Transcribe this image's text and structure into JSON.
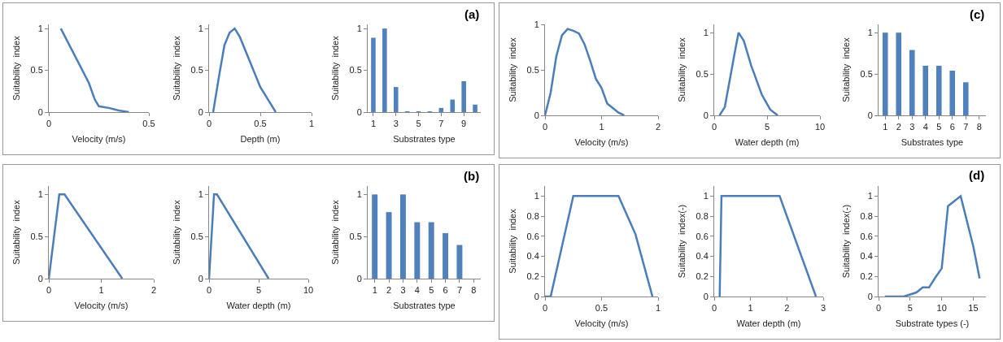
{
  "chart_data": [
    {
      "type": "line",
      "xlabel": "Velocity (m/s)",
      "ylabel": "Suitability  index",
      "x": [
        0.06,
        0.2,
        0.23,
        0.25,
        0.3,
        0.35,
        0.4
      ],
      "values": [
        1,
        0.35,
        0.15,
        0.07,
        0.05,
        0.02,
        0
      ],
      "color": "#4a7ebb",
      "xlim": [
        0,
        0.5
      ],
      "xticks": [
        0,
        0.5
      ],
      "ylim": [
        0,
        1.05
      ],
      "yticks": [
        0,
        0.5,
        1
      ]
    },
    {
      "type": "line",
      "xlabel": "Depth (m)",
      "ylabel": "Suitability  index",
      "x": [
        0.04,
        0.1,
        0.15,
        0.2,
        0.25,
        0.3,
        0.4,
        0.5,
        0.6,
        0.65
      ],
      "values": [
        0,
        0.45,
        0.8,
        0.95,
        1,
        0.9,
        0.6,
        0.3,
        0.1,
        0
      ],
      "color": "#4a7ebb",
      "xlim": [
        0,
        1
      ],
      "xticks": [
        0,
        0.5,
        1
      ],
      "ylim": [
        0,
        1.05
      ],
      "yticks": [
        0,
        0.5,
        1
      ]
    },
    {
      "type": "bar",
      "xlabel": "Substrates type",
      "ylabel": "Suitability  index",
      "x": [
        1,
        2,
        3,
        4,
        5,
        6,
        7,
        8,
        9,
        10
      ],
      "values": [
        0.89,
        1,
        0.3,
        0.01,
        0.01,
        0.01,
        0.05,
        0.15,
        0.37,
        0.09
      ],
      "color": "#4f81bd",
      "xlim": [
        0.5,
        10.5
      ],
      "xticks": [
        1,
        3,
        5,
        7,
        9
      ],
      "ylim": [
        0,
        1.05
      ],
      "yticks": [
        0,
        0.5,
        1
      ],
      "annotations": [
        "(a)"
      ]
    },
    {
      "type": "line",
      "xlabel": "Velocity (m/s)",
      "ylabel": "Suitability  index",
      "x": [
        0,
        0.1,
        0.2,
        0.3,
        0.4,
        0.5,
        0.6,
        0.7,
        0.8,
        0.9,
        1.0,
        1.1,
        1.2,
        1.3,
        1.4
      ],
      "values": [
        0,
        0.25,
        0.65,
        0.88,
        0.95,
        0.93,
        0.9,
        0.78,
        0.6,
        0.4,
        0.3,
        0.13,
        0.08,
        0.03,
        0
      ],
      "color": "#4a7ebb",
      "xlim": [
        0,
        2
      ],
      "xticks": [
        0,
        1,
        2
      ],
      "ylim": [
        0,
        1
      ],
      "yticks": [
        0,
        0.5,
        1
      ]
    },
    {
      "type": "line",
      "xlabel": "Water depth (m)",
      "ylabel": "Suitability  index",
      "x": [
        0.5,
        1,
        1.5,
        2,
        2.3,
        2.8,
        3.5,
        4.5,
        5.3,
        6
      ],
      "values": [
        0,
        0.1,
        0.45,
        0.8,
        1,
        0.9,
        0.6,
        0.25,
        0.07,
        0
      ],
      "color": "#4a7ebb",
      "xlim": [
        0,
        10
      ],
      "xticks": [
        0,
        5,
        10
      ],
      "ylim": [
        0,
        1.1
      ],
      "yticks": [
        0,
        0.5,
        1
      ]
    },
    {
      "type": "bar",
      "xlabel": "Substrates type",
      "ylabel": "Suitability  index",
      "x": [
        1,
        2,
        3,
        4,
        5,
        6,
        7
      ],
      "values": [
        1,
        1,
        0.79,
        0.6,
        0.6,
        0.54,
        0.4
      ],
      "color": "#4f81bd",
      "xlim": [
        0.5,
        8.5
      ],
      "xticks": [
        1,
        2,
        3,
        4,
        5,
        6,
        7,
        8
      ],
      "ylim": [
        0,
        1.1
      ],
      "yticks": [
        0,
        0.5,
        1
      ],
      "annotations": [
        "(c)"
      ]
    },
    {
      "type": "line",
      "xlabel": "Velocity (m/s)",
      "ylabel": "Suitability  index",
      "x": [
        0,
        0.2,
        0.3,
        1.4
      ],
      "values": [
        0,
        1,
        1,
        0
      ],
      "color": "#4a7ebb",
      "xlim": [
        0,
        2
      ],
      "xticks": [
        0,
        1,
        2
      ],
      "ylim": [
        0,
        1.1
      ],
      "yticks": [
        0,
        0.5,
        1
      ]
    },
    {
      "type": "line",
      "xlabel": "Water depth (m)",
      "ylabel": "Suitability  index",
      "x": [
        0,
        0.5,
        0.8,
        6
      ],
      "values": [
        0,
        1,
        1,
        0
      ],
      "color": "#4a7ebb",
      "xlim": [
        0,
        10
      ],
      "xticks": [
        0,
        5,
        10
      ],
      "ylim": [
        0,
        1.1
      ],
      "yticks": [
        0,
        0.5,
        1
      ]
    },
    {
      "type": "bar",
      "xlabel": "Substrates type",
      "ylabel": "Suitability  index",
      "x": [
        1,
        2,
        3,
        4,
        5,
        6,
        7
      ],
      "values": [
        1,
        0.79,
        1,
        0.67,
        0.67,
        0.54,
        0.4
      ],
      "color": "#4f81bd",
      "xlim": [
        0.5,
        8.5
      ],
      "xticks": [
        1,
        2,
        3,
        4,
        5,
        6,
        7,
        8
      ],
      "ylim": [
        0,
        1.1
      ],
      "yticks": [
        0,
        0.5,
        1
      ],
      "annotations": [
        "(b)"
      ]
    },
    {
      "type": "line",
      "xlabel": "Velocity (m/s)",
      "ylabel": "Suitability  index",
      "x": [
        0,
        0.05,
        0.25,
        0.65,
        0.8,
        0.95
      ],
      "values": [
        0,
        0,
        1,
        1,
        0.62,
        0
      ],
      "color": "#4a7ebb",
      "xlim": [
        0,
        1
      ],
      "xticks": [
        0,
        0.5,
        1
      ],
      "ylim": [
        0,
        1.1
      ],
      "yticks": [
        0,
        0.2,
        0.4,
        0.6,
        0.8,
        1
      ]
    },
    {
      "type": "line",
      "xlabel": "Water depth (m)",
      "ylabel": "Suitability  index(-)",
      "x": [
        0.15,
        0.2,
        1.8,
        2.8
      ],
      "values": [
        0,
        1,
        1,
        0
      ],
      "color": "#4a7ebb",
      "xlim": [
        0,
        3
      ],
      "xticks": [
        0,
        1,
        2,
        3
      ],
      "ylim": [
        0,
        1.1
      ],
      "yticks": [
        0,
        0.2,
        0.4,
        0.6,
        0.8,
        1
      ]
    },
    {
      "type": "line",
      "xlabel": "Substrate types (-)",
      "ylabel": "Suitability  index(-)",
      "x": [
        1,
        4,
        5,
        6,
        7,
        8,
        9,
        10,
        11,
        13,
        15,
        16
      ],
      "values": [
        0,
        0,
        0.02,
        0.04,
        0.09,
        0.09,
        0.19,
        0.28,
        0.9,
        1,
        0.5,
        0.18
      ],
      "color": "#4a7ebb",
      "xlim": [
        0,
        17
      ],
      "xticks": [
        0,
        5,
        10,
        15
      ],
      "ylim": [
        0,
        1.1
      ],
      "yticks": [
        0,
        0.2,
        0.4,
        0.6,
        0.8,
        1
      ],
      "annotations": [
        "(d)"
      ]
    }
  ]
}
